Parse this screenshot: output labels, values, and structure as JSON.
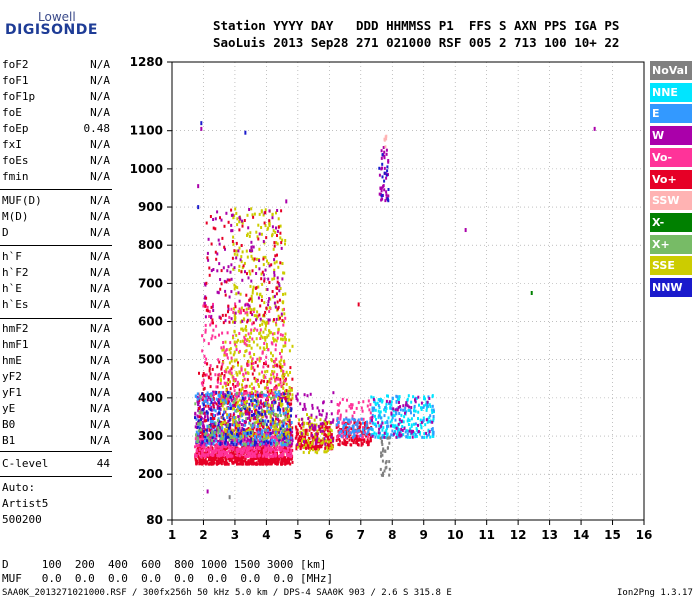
{
  "logo": {
    "line1": "Lowell",
    "line2": "DIGISONDE"
  },
  "header": {
    "labels": "Station YYYY DAY   DDD HHMMSS P1  FFS S AXN PPS IGA PS",
    "values": "SaoLuis 2013 Sep28 271 021000 RSF 005 2 713 100 10+ 22"
  },
  "params_group1": [
    {
      "name": "foF2",
      "value": "N/A"
    },
    {
      "name": "foF1",
      "value": "N/A"
    },
    {
      "name": "foF1p",
      "value": "N/A"
    },
    {
      "name": "foE",
      "value": "N/A"
    },
    {
      "name": "foEp",
      "value": "0.48"
    },
    {
      "name": "fxI",
      "value": "N/A"
    },
    {
      "name": "foEs",
      "value": "N/A"
    },
    {
      "name": "fmin",
      "value": "N/A"
    }
  ],
  "params_group2": [
    {
      "name": "MUF(D)",
      "value": "N/A"
    },
    {
      "name": "M(D)",
      "value": "N/A"
    },
    {
      "name": "D",
      "value": "N/A"
    }
  ],
  "params_group3": [
    {
      "name": "h`F",
      "value": "N/A"
    },
    {
      "name": "h`F2",
      "value": "N/A"
    },
    {
      "name": "h`E",
      "value": "N/A"
    },
    {
      "name": "h`Es",
      "value": "N/A"
    }
  ],
  "params_group4": [
    {
      "name": "hmF2",
      "value": "N/A"
    },
    {
      "name": "hmF1",
      "value": "N/A"
    },
    {
      "name": "hmE",
      "value": "N/A"
    },
    {
      "name": "yF2",
      "value": "N/A"
    },
    {
      "name": "yF1",
      "value": "N/A"
    },
    {
      "name": "yE",
      "value": "N/A"
    },
    {
      "name": "B0",
      "value": "N/A"
    },
    {
      "name": "B1",
      "value": "N/A"
    }
  ],
  "c_level": {
    "name": "C-level",
    "value": "44"
  },
  "autoscale": {
    "line1": "Auto:",
    "line2": "Artist5",
    "line3": "500200"
  },
  "legend": [
    {
      "label": "NoVal",
      "color": "#808080"
    },
    {
      "label": "NNE",
      "color": "#00e5ff"
    },
    {
      "label": "E",
      "color": "#3399ff"
    },
    {
      "label": "W",
      "color": "#aa00aa"
    },
    {
      "label": "Vo-",
      "color": "#ff3399"
    },
    {
      "label": "Vo+",
      "color": "#e60026"
    },
    {
      "label": "SSW",
      "color": "#ffb3b3"
    },
    {
      "label": "X-",
      "color": "#008000"
    },
    {
      "label": "X+",
      "color": "#77bb66"
    },
    {
      "label": "SSE",
      "color": "#cccc00"
    },
    {
      "label": "NNW",
      "color": "#1a1acc"
    }
  ],
  "bottom": {
    "d_row": "D     100  200  400  600  800 1000 1500 3000 [km]",
    "muf_row": "MUF   0.0  0.0  0.0  0.0  0.0  0.0  0.0  0.0 [MHz]"
  },
  "footer": {
    "left": "SAA0K_2013271021000.RSF / 300fx256h 50 kHz 5.0 km / DPS-4 SAA0K 903 / 2.6 S 315.8 E",
    "right": "Ion2Png 1.3.17"
  },
  "chart_data": {
    "type": "scatter",
    "xlim": [
      1,
      16
    ],
    "ylim": [
      80,
      1280
    ],
    "x_ticks": [
      1,
      2,
      3,
      4,
      5,
      6,
      7,
      8,
      9,
      10,
      11,
      12,
      13,
      14,
      15,
      16
    ],
    "y_ticks": [
      80,
      200,
      300,
      400,
      500,
      600,
      700,
      800,
      900,
      1000,
      1100,
      1280
    ],
    "grid": true,
    "legend_position": "right",
    "clusters": [
      {
        "name": "Vo+",
        "x": [
          1.7,
          4.8
        ],
        "y": [
          230,
          280
        ],
        "n": 700
      },
      {
        "name": "Vo-",
        "x": [
          1.7,
          4.8
        ],
        "y": [
          250,
          320
        ],
        "n": 500
      },
      {
        "name": "W",
        "x": [
          1.7,
          4.8
        ],
        "y": [
          280,
          420
        ],
        "n": 500
      },
      {
        "name": "Vo+",
        "x": [
          1.8,
          4.8
        ],
        "y": [
          300,
          500
        ],
        "n": 300
      },
      {
        "name": "SSE",
        "x": [
          2.5,
          4.8
        ],
        "y": [
          300,
          560
        ],
        "n": 350
      },
      {
        "name": "Vo-",
        "x": [
          1.9,
          4.6
        ],
        "y": [
          400,
          650
        ],
        "n": 200
      },
      {
        "name": "SSE",
        "x": [
          2.9,
          4.6
        ],
        "y": [
          550,
          900
        ],
        "n": 220
      },
      {
        "name": "W",
        "x": [
          2.0,
          4.5
        ],
        "y": [
          600,
          900
        ],
        "n": 120
      },
      {
        "name": "Vo+",
        "x": [
          2.0,
          4.5
        ],
        "y": [
          600,
          900
        ],
        "n": 100
      },
      {
        "name": "E",
        "x": [
          1.7,
          4.8
        ],
        "y": [
          280,
          420
        ],
        "n": 200
      },
      {
        "name": "NNW",
        "x": [
          1.7,
          4.8
        ],
        "y": [
          280,
          420
        ],
        "n": 120
      },
      {
        "name": "X+",
        "x": [
          1.7,
          4.8
        ],
        "y": [
          280,
          420
        ],
        "n": 100
      },
      {
        "name": "Vo+",
        "x": [
          4.9,
          6.1
        ],
        "y": [
          270,
          340
        ],
        "n": 200
      },
      {
        "name": "SSE",
        "x": [
          4.9,
          6.1
        ],
        "y": [
          260,
          360
        ],
        "n": 80
      },
      {
        "name": "W",
        "x": [
          4.9,
          6.1
        ],
        "y": [
          280,
          420
        ],
        "n": 60
      },
      {
        "name": "Vo+",
        "x": [
          6.2,
          7.3
        ],
        "y": [
          280,
          340
        ],
        "n": 150
      },
      {
        "name": "Vo-",
        "x": [
          6.2,
          7.3
        ],
        "y": [
          300,
          400
        ],
        "n": 80
      },
      {
        "name": "E",
        "x": [
          6.2,
          7.3
        ],
        "y": [
          300,
          350
        ],
        "n": 60
      },
      {
        "name": "NNE",
        "x": [
          7.3,
          9.3
        ],
        "y": [
          300,
          410
        ],
        "n": 200
      },
      {
        "name": "E",
        "x": [
          7.3,
          9.3
        ],
        "y": [
          300,
          410
        ],
        "n": 80
      },
      {
        "name": "W",
        "x": [
          7.3,
          9.3
        ],
        "y": [
          300,
          410
        ],
        "n": 60
      },
      {
        "name": "NoVal",
        "x": [
          7.6,
          7.9
        ],
        "y": [
          200,
          300
        ],
        "n": 30
      },
      {
        "name": "W",
        "x": [
          7.55,
          7.85
        ],
        "y": [
          920,
          1060
        ],
        "n": 40
      },
      {
        "name": "NNW",
        "x": [
          7.55,
          7.85
        ],
        "y": [
          920,
          1060
        ],
        "n": 15
      },
      {
        "name": "SSW",
        "x": [
          7.7,
          7.8
        ],
        "y": [
          1060,
          1090
        ],
        "n": 6
      }
    ],
    "points": [
      {
        "name": "W",
        "x": 1.9,
        "y": 1110
      },
      {
        "name": "NNW",
        "x": 1.9,
        "y": 1125
      },
      {
        "name": "W",
        "x": 14.4,
        "y": 1110
      },
      {
        "name": "W",
        "x": 10.3,
        "y": 845
      },
      {
        "name": "X-",
        "x": 12.4,
        "y": 680
      },
      {
        "name": "W",
        "x": 1.8,
        "y": 960
      },
      {
        "name": "NNW",
        "x": 1.8,
        "y": 905
      },
      {
        "name": "W",
        "x": 4.6,
        "y": 920
      },
      {
        "name": "Vo+",
        "x": 6.9,
        "y": 650
      },
      {
        "name": "NoVal",
        "x": 2.8,
        "y": 145
      },
      {
        "name": "W",
        "x": 2.1,
        "y": 160
      },
      {
        "name": "NNW",
        "x": 3.3,
        "y": 1100
      }
    ]
  }
}
